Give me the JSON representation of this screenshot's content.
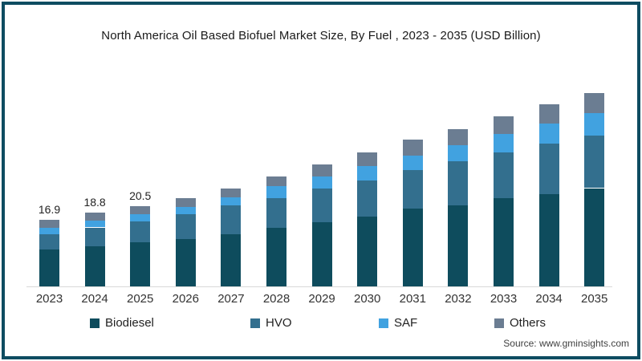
{
  "title": "North America Oil Based Biofuel Market Size, By Fuel , 2023 - 2035 (USD Billion)",
  "source": "Source: www.gminsights.com",
  "colors": {
    "frame_border": "#0e4c61",
    "biodiesel": "#0e4c5d",
    "hvo": "#336f8e",
    "saf": "#41a2e0",
    "others": "#6b7d92",
    "axis_line": "#d9d9d9"
  },
  "chart_data": {
    "type": "bar",
    "stacked": true,
    "title": "North America Oil Based Biofuel Market Size, By Fuel , 2023 - 2035 (USD Billion)",
    "units": "USD Billion",
    "grid": false,
    "legend_position": "bottom",
    "xlabel": "",
    "ylabel": "",
    "ylim": [
      0,
      52
    ],
    "categories": [
      "2023",
      "2024",
      "2025",
      "2026",
      "2027",
      "2028",
      "2029",
      "2030",
      "2031",
      "2032",
      "2033",
      "2034",
      "2035"
    ],
    "series": [
      {
        "name": "Biodiesel",
        "color": "#0e4c5d",
        "values": [
          9.4,
          10.2,
          11.3,
          12.1,
          13.2,
          15.0,
          16.3,
          17.7,
          19.7,
          20.7,
          22.4,
          23.5,
          25.0
        ]
      },
      {
        "name": "HVO",
        "color": "#336f8e",
        "values": [
          3.9,
          4.8,
          5.2,
          6.3,
          7.4,
          7.5,
          8.5,
          9.2,
          9.9,
          11.2,
          11.6,
          12.8,
          13.3
        ]
      },
      {
        "name": "SAF",
        "color": "#41a2e0",
        "values": [
          1.6,
          1.7,
          1.9,
          1.9,
          2.0,
          3.1,
          3.1,
          3.7,
          3.7,
          4.1,
          4.8,
          5.2,
          5.7
        ]
      },
      {
        "name": "Others",
        "color": "#6b7d92",
        "values": [
          2.0,
          2.1,
          2.1,
          2.2,
          2.2,
          2.4,
          3.1,
          3.4,
          4.0,
          4.1,
          4.4,
          4.8,
          5.1
        ]
      }
    ],
    "totals": [
      16.9,
      18.8,
      20.5,
      22.5,
      24.8,
      28.0,
      31.0,
      34.0,
      37.3,
      40.1,
      43.2,
      46.3,
      49.1
    ],
    "value_labels": {
      "2023": "16.9",
      "2024": "18.8",
      "2025": "20.5"
    }
  }
}
